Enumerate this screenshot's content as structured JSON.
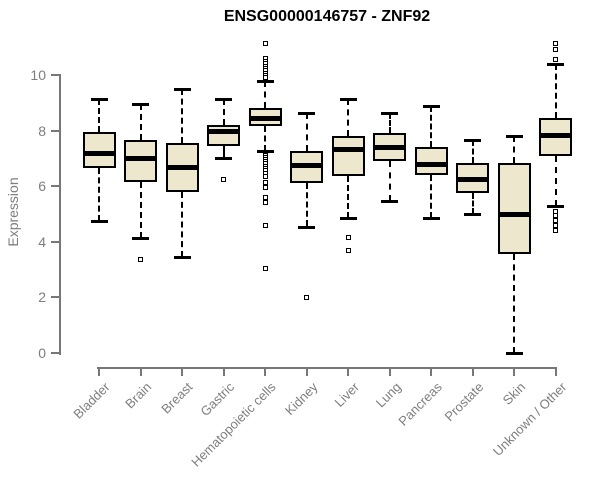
{
  "chart_data": {
    "type": "boxplot",
    "title": "ENSG00000146757 - ZNF92",
    "xlabel": "",
    "ylabel": "Expression",
    "ylim": [
      0,
      11.3
    ],
    "yticks": [
      0,
      2,
      4,
      6,
      8,
      10
    ],
    "grid": false,
    "legend_position": "none",
    "categories": [
      "Bladder",
      "Brain",
      "Breast",
      "Gastric",
      "Hematopoietic cells",
      "Kidney",
      "Liver",
      "Lung",
      "Pancreas",
      "Prostate",
      "Skin",
      "Unknown / Other"
    ],
    "series": [
      {
        "name": "Bladder",
        "whisker_low": 4.75,
        "q1": 6.65,
        "median": 7.2,
        "q3": 7.95,
        "whisker_high": 9.15,
        "outliers": []
      },
      {
        "name": "Brain",
        "whisker_low": 4.15,
        "q1": 6.15,
        "median": 7.0,
        "q3": 7.65,
        "whisker_high": 8.95,
        "outliers": [
          3.35
        ]
      },
      {
        "name": "Breast",
        "whisker_low": 3.45,
        "q1": 5.8,
        "median": 6.7,
        "q3": 7.55,
        "whisker_high": 9.5,
        "outliers": []
      },
      {
        "name": "Gastric",
        "whisker_low": 7.0,
        "q1": 7.45,
        "median": 8.0,
        "q3": 8.2,
        "whisker_high": 9.15,
        "outliers": [
          6.25
        ]
      },
      {
        "name": "Hematopoietic cells",
        "whisker_low": 7.25,
        "q1": 8.15,
        "median": 8.45,
        "q3": 8.8,
        "whisker_high": 9.8,
        "outliers": [
          11.15,
          10.6,
          10.5,
          10.4,
          10.3,
          10.25,
          10.15,
          10.05,
          10.0,
          9.9,
          7.1,
          7.05,
          6.95,
          6.9,
          6.8,
          6.7,
          6.65,
          6.55,
          6.45,
          6.35,
          6.15,
          5.95,
          5.6,
          5.4,
          4.6,
          3.05
        ]
      },
      {
        "name": "Kidney",
        "whisker_low": 4.55,
        "q1": 6.1,
        "median": 6.75,
        "q3": 7.25,
        "whisker_high": 8.65,
        "outliers": [
          2.0
        ]
      },
      {
        "name": "Liver",
        "whisker_low": 4.85,
        "q1": 6.35,
        "median": 7.35,
        "q3": 7.8,
        "whisker_high": 9.15,
        "outliers": [
          4.15,
          3.7
        ]
      },
      {
        "name": "Lung",
        "whisker_low": 5.45,
        "q1": 6.9,
        "median": 7.4,
        "q3": 7.9,
        "whisker_high": 8.65,
        "outliers": []
      },
      {
        "name": "Pancreas",
        "whisker_low": 4.85,
        "q1": 6.4,
        "median": 6.8,
        "q3": 7.4,
        "whisker_high": 8.9,
        "outliers": []
      },
      {
        "name": "Prostate",
        "whisker_low": 5.0,
        "q1": 5.75,
        "median": 6.25,
        "q3": 6.85,
        "whisker_high": 7.65,
        "outliers": []
      },
      {
        "name": "Skin",
        "whisker_low": 0.0,
        "q1": 3.55,
        "median": 5.0,
        "q3": 6.85,
        "whisker_high": 7.8,
        "outliers": []
      },
      {
        "name": "Unknown / Other",
        "whisker_low": 5.3,
        "q1": 7.1,
        "median": 7.85,
        "q3": 8.45,
        "whisker_high": 10.4,
        "outliers": [
          11.15,
          10.9,
          10.55,
          5.1,
          4.95,
          4.75,
          4.6,
          4.4
        ]
      }
    ],
    "colors": {
      "box_fill": "#EDE8CD",
      "box_border": "#000000",
      "whisker": "#000000",
      "outlier_border": "#000000",
      "outlier_fill": "#FFFFFF",
      "axis": "#777777",
      "tick_text": "#7E7E7E",
      "title_text": "#000000",
      "background": "#FFFFFF"
    }
  }
}
